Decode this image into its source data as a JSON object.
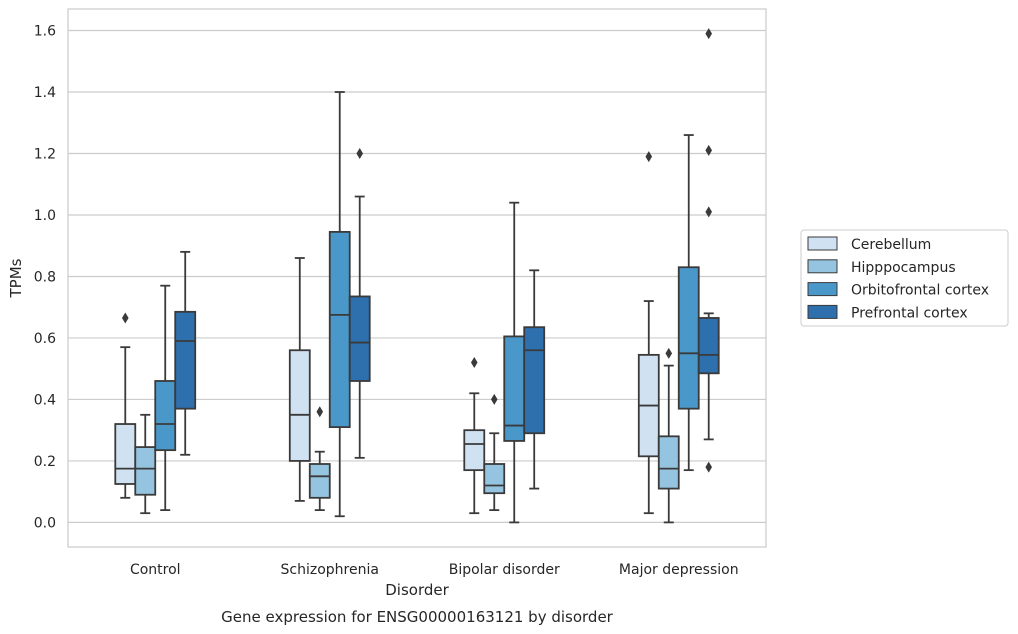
{
  "chart_data": {
    "type": "box",
    "caption": "Gene expression for ENSG00000163121 by disorder",
    "xlabel": "Disorder",
    "ylabel": "TPMs",
    "ylim": [
      -0.08,
      1.67
    ],
    "yticks": [
      0.0,
      0.2,
      0.4,
      0.6,
      0.8,
      1.0,
      1.2,
      1.4,
      1.6
    ],
    "ytick_labels": [
      "0.0",
      "0.2",
      "0.4",
      "0.6",
      "0.8",
      "1.0",
      "1.2",
      "1.4",
      "1.6"
    ],
    "grid": true,
    "legend_position": "right",
    "categories": [
      "Control",
      "Schizophrenia",
      "Bipolar disorder",
      "Major depression"
    ],
    "series": [
      {
        "name": "Cerebellum",
        "color": "#d0e1f2",
        "boxes": [
          {
            "whisker_low": 0.08,
            "q1": 0.125,
            "median": 0.175,
            "q3": 0.32,
            "whisker_high": 0.57,
            "outliers": [
              0.665
            ]
          },
          {
            "whisker_low": 0.07,
            "q1": 0.2,
            "median": 0.35,
            "q3": 0.56,
            "whisker_high": 0.86,
            "outliers": []
          },
          {
            "whisker_low": 0.03,
            "q1": 0.17,
            "median": 0.255,
            "q3": 0.3,
            "whisker_high": 0.42,
            "outliers": [
              0.52
            ]
          },
          {
            "whisker_low": 0.03,
            "q1": 0.215,
            "median": 0.38,
            "q3": 0.545,
            "whisker_high": 0.72,
            "outliers": [
              1.19
            ]
          }
        ]
      },
      {
        "name": "Hipppocampus",
        "color": "#94c4df",
        "boxes": [
          {
            "whisker_low": 0.03,
            "q1": 0.09,
            "median": 0.175,
            "q3": 0.245,
            "whisker_high": 0.35,
            "outliers": []
          },
          {
            "whisker_low": 0.04,
            "q1": 0.08,
            "median": 0.15,
            "q3": 0.19,
            "whisker_high": 0.23,
            "outliers": [
              0.36
            ]
          },
          {
            "whisker_low": 0.04,
            "q1": 0.095,
            "median": 0.12,
            "q3": 0.19,
            "whisker_high": 0.29,
            "outliers": [
              0.4
            ]
          },
          {
            "whisker_low": 0.0,
            "q1": 0.11,
            "median": 0.175,
            "q3": 0.28,
            "whisker_high": 0.51,
            "outliers": [
              0.55
            ]
          }
        ]
      },
      {
        "name": "Orbitofrontal cortex",
        "color": "#4a98c9",
        "boxes": [
          {
            "whisker_low": 0.04,
            "q1": 0.235,
            "median": 0.32,
            "q3": 0.46,
            "whisker_high": 0.77,
            "outliers": []
          },
          {
            "whisker_low": 0.02,
            "q1": 0.31,
            "median": 0.675,
            "q3": 0.945,
            "whisker_high": 1.4,
            "outliers": []
          },
          {
            "whisker_low": 0.0,
            "q1": 0.265,
            "median": 0.315,
            "q3": 0.605,
            "whisker_high": 1.04,
            "outliers": []
          },
          {
            "whisker_low": 0.17,
            "q1": 0.37,
            "median": 0.55,
            "q3": 0.83,
            "whisker_high": 1.26,
            "outliers": []
          }
        ]
      },
      {
        "name": "Prefrontal cortex",
        "color": "#2e6fae",
        "boxes": [
          {
            "whisker_low": 0.22,
            "q1": 0.37,
            "median": 0.59,
            "q3": 0.685,
            "whisker_high": 0.88,
            "outliers": []
          },
          {
            "whisker_low": 0.21,
            "q1": 0.46,
            "median": 0.585,
            "q3": 0.735,
            "whisker_high": 1.06,
            "outliers": [
              1.2
            ]
          },
          {
            "whisker_low": 0.11,
            "q1": 0.29,
            "median": 0.56,
            "q3": 0.635,
            "whisker_high": 0.82,
            "outliers": []
          },
          {
            "whisker_low": 0.27,
            "q1": 0.485,
            "median": 0.545,
            "q3": 0.665,
            "whisker_high": 0.68,
            "outliers": [
              0.18,
              1.01,
              1.21,
              1.59
            ]
          }
        ]
      }
    ]
  }
}
